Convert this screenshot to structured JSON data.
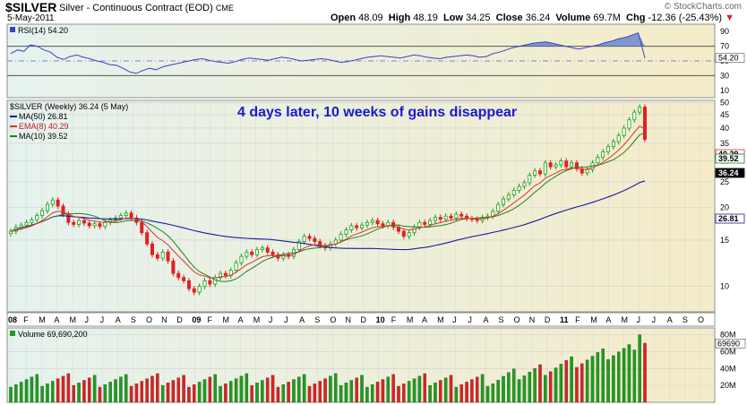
{
  "header": {
    "symbol": "$SILVER",
    "name": "Silver - Continuous Contract (EOD)",
    "exchange": "CME",
    "date": "5-May-2011",
    "copyright": "© StockCharts.com",
    "open_label": "Open",
    "open": "48.09",
    "high_label": "High",
    "high": "48.19",
    "low_label": "Low",
    "low": "34.25",
    "close_label": "Close",
    "close": "36.24",
    "volume_label": "Volume",
    "volume": "69.7M",
    "chg_label": "Chg",
    "chg": "-12.36 (-25.43%)",
    "chg_arrow": "▼"
  },
  "annotation": "4 days later,  10 weeks of gains disappear",
  "colors": {
    "up": "#1aa01a",
    "down": "#e02020",
    "ma50": "#1a1aa0",
    "ema8": "#e03030",
    "ma10": "#208020",
    "rsi": "#3a40c0",
    "annotation": "#1a1ad0"
  },
  "chart_data": [
    {
      "type": "line",
      "title": "RSI(14) 54.20",
      "series": [
        {
          "name": "RSI(14)",
          "values": [
            60,
            65,
            63,
            72,
            70,
            65,
            62,
            55,
            52,
            56,
            58,
            55,
            53,
            50,
            48,
            45,
            44,
            40,
            35,
            33,
            37,
            40,
            38,
            42,
            44,
            46,
            48,
            50,
            52,
            53,
            51,
            49,
            48,
            47,
            49,
            52,
            54,
            53,
            52,
            51,
            53,
            55,
            54,
            52,
            50,
            51,
            52,
            53,
            52,
            50,
            48,
            49,
            51,
            53,
            55,
            56,
            57,
            56,
            55,
            54,
            56,
            58,
            57,
            55,
            54,
            53,
            55,
            56,
            57,
            58,
            57,
            55,
            56,
            60,
            62,
            65,
            68,
            70,
            72,
            74,
            75,
            76,
            74,
            72,
            70,
            68,
            66,
            68,
            70,
            72,
            75,
            77,
            80,
            82,
            85,
            88,
            54.2
          ]
        }
      ],
      "ylim": [
        0,
        100
      ],
      "ticks": [
        "10",
        "30",
        "50",
        "70",
        "90"
      ],
      "lines": [
        30,
        70
      ],
      "last_label": "54.20"
    },
    {
      "type": "candlestick",
      "title": "$SILVER (Weekly) 36.24 (5 May)",
      "legend": [
        {
          "name": "MA(50) 26.81"
        },
        {
          "name": "EMA(8) 40.29"
        },
        {
          "name": "MA(10) 39.52"
        }
      ],
      "y_ticks": [
        "10",
        "15",
        "20",
        "25",
        "30",
        "35",
        "40",
        "45",
        "50"
      ],
      "x_labels": [
        "08",
        "F",
        "M",
        "A",
        "M",
        "J",
        "J",
        "A",
        "S",
        "O",
        "N",
        "D",
        "09",
        "F",
        "M",
        "A",
        "M",
        "J",
        "J",
        "A",
        "S",
        "O",
        "N",
        "D",
        "10",
        "F",
        "M",
        "A",
        "M",
        "J",
        "J",
        "A",
        "S",
        "O",
        "N",
        "D",
        "11",
        "F",
        "M",
        "A",
        "M",
        "J",
        "J",
        "A",
        "S",
        "O"
      ],
      "closes": [
        16.2,
        16.8,
        17.1,
        17.5,
        17.9,
        18.6,
        19.4,
        20.5,
        21.3,
        20.2,
        18.8,
        17.5,
        17.2,
        17.8,
        17.4,
        17.0,
        17.3,
        16.9,
        17.5,
        17.9,
        18.2,
        18.6,
        19.0,
        18.2,
        17.5,
        16.0,
        14.5,
        13.2,
        12.8,
        13.5,
        12.5,
        11.2,
        10.8,
        10.5,
        9.8,
        9.5,
        10.0,
        10.5,
        10.2,
        10.8,
        11.2,
        11.0,
        11.5,
        12.3,
        13.0,
        13.5,
        13.2,
        13.8,
        14.0,
        13.5,
        13.2,
        12.8,
        13.2,
        13.0,
        13.8,
        14.8,
        15.5,
        15.2,
        14.8,
        14.3,
        14.0,
        14.5,
        15.0,
        15.8,
        16.4,
        17.0,
        16.7,
        17.1,
        17.5,
        17.8,
        17.3,
        17.0,
        17.5,
        16.8,
        16.2,
        15.5,
        16.0,
        16.8,
        17.5,
        17.2,
        17.8,
        18.3,
        18.0,
        18.5,
        18.2,
        18.8,
        18.5,
        18.1,
        18.0,
        17.8,
        18.3,
        18.5,
        19.3,
        20.5,
        21.5,
        22.3,
        23.2,
        24.0,
        24.8,
        26.5,
        27.5,
        26.8,
        29.5,
        28.5,
        29.0,
        30.0,
        28.5,
        29.5,
        28.0,
        27.0,
        27.8,
        29.5,
        31.0,
        32.5,
        34.0,
        35.5,
        37.5,
        40.0,
        43.0,
        46.0,
        48.1,
        36.24
      ],
      "ma50_end": 26.81,
      "ema8_end": 40.29,
      "ma10_end": 39.52,
      "last_labels": [
        "40.29",
        "39.52",
        "36.24",
        "26.81"
      ],
      "ylim": [
        8,
        51
      ]
    },
    {
      "type": "bar",
      "title": "Volume 69,690,200",
      "y_ticks": [
        "20M",
        "40M",
        "60M",
        "80M"
      ],
      "last_label": "69690",
      "ylim": [
        0,
        88
      ]
    }
  ]
}
